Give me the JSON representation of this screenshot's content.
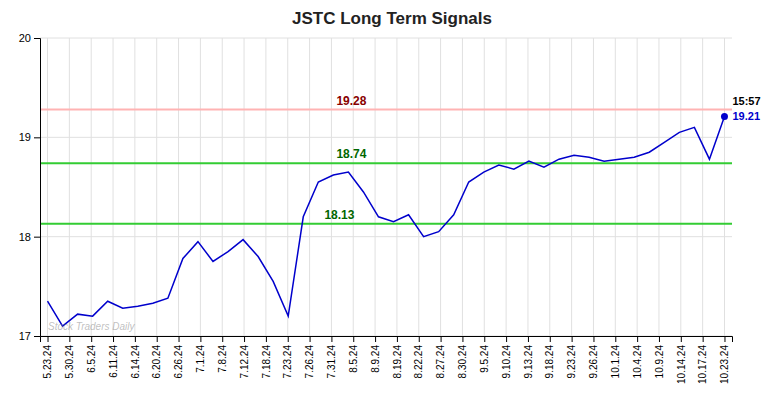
{
  "chart_data": {
    "type": "line",
    "title": "JSTC Long Term Signals",
    "watermark": "Stock Traders Daily",
    "x": [
      0,
      1,
      2,
      3,
      4,
      5,
      6,
      7,
      8,
      9,
      10,
      11,
      12,
      13,
      14,
      15,
      16,
      17,
      18,
      19,
      20,
      21,
      22,
      23,
      24,
      25,
      26,
      27,
      28,
      29,
      30,
      31,
      32,
      33,
      34,
      35,
      36,
      37,
      38,
      39,
      40,
      41,
      42,
      43,
      44,
      45
    ],
    "values": [
      17.35,
      17.1,
      17.22,
      17.2,
      17.35,
      17.28,
      17.3,
      17.33,
      17.38,
      17.78,
      17.95,
      17.75,
      17.85,
      17.97,
      17.8,
      17.55,
      17.2,
      18.2,
      18.55,
      18.62,
      18.65,
      18.45,
      18.2,
      18.15,
      18.22,
      18.0,
      18.05,
      18.22,
      18.55,
      18.65,
      18.72,
      18.68,
      18.76,
      18.7,
      18.78,
      18.82,
      18.8,
      18.76,
      18.78,
      18.8,
      18.85,
      18.95,
      19.05,
      19.1,
      18.78,
      19.21
    ],
    "color": "#0000cc",
    "xlim": [
      -0.5,
      45.5
    ],
    "xticks": [
      {
        "value": 0,
        "label": "5.23.24"
      },
      {
        "value": 1.4516,
        "label": "5.30.24"
      },
      {
        "value": 2.9032,
        "label": "6.5.24"
      },
      {
        "value": 4.3548,
        "label": "6.11.24"
      },
      {
        "value": 5.8065,
        "label": "6.14.24"
      },
      {
        "value": 7.2581,
        "label": "6.20.24"
      },
      {
        "value": 8.7097,
        "label": "6.26.24"
      },
      {
        "value": 10.1613,
        "label": "7.1.24"
      },
      {
        "value": 11.6129,
        "label": "7.8.24"
      },
      {
        "value": 13.0645,
        "label": "7.12.24"
      },
      {
        "value": 14.5161,
        "label": "7.18.24"
      },
      {
        "value": 15.9677,
        "label": "7.23.24"
      },
      {
        "value": 17.4194,
        "label": "7.26.24"
      },
      {
        "value": 18.871,
        "label": "7.31.24"
      },
      {
        "value": 20.3226,
        "label": "8.5.24"
      },
      {
        "value": 21.7742,
        "label": "8.9.24"
      },
      {
        "value": 23.2258,
        "label": "8.19.24"
      },
      {
        "value": 24.6774,
        "label": "8.22.24"
      },
      {
        "value": 26.129,
        "label": "8.27.24"
      },
      {
        "value": 27.5806,
        "label": "8.30.24"
      },
      {
        "value": 29.0323,
        "label": "9.5.24"
      },
      {
        "value": 30.4839,
        "label": "9.10.24"
      },
      {
        "value": 31.9355,
        "label": "9.13.24"
      },
      {
        "value": 33.3871,
        "label": "9.18.24"
      },
      {
        "value": 34.8387,
        "label": "9.23.24"
      },
      {
        "value": 36.2903,
        "label": "9.26.24"
      },
      {
        "value": 37.7419,
        "label": "10.1.24"
      },
      {
        "value": 39.1935,
        "label": "10.4.24"
      },
      {
        "value": 40.6452,
        "label": "10.9.24"
      },
      {
        "value": 42.0968,
        "label": "10.14.24"
      },
      {
        "value": 43.5484,
        "label": "10.17.24"
      },
      {
        "value": 45,
        "label": "10.23.24"
      }
    ],
    "ylim": [
      17,
      20
    ],
    "yticks": [
      17,
      18,
      19,
      20
    ],
    "grid": true,
    "reference_lines": [
      {
        "value": 19.28,
        "color": "#ffb3b3",
        "label": "19.28",
        "label_color": "#880000"
      },
      {
        "value": 18.74,
        "color": "#33cc33",
        "label": "18.74",
        "label_color": "#006600"
      },
      {
        "value": 18.13,
        "color": "#33cc33",
        "label": "18.13",
        "label_color": "#006600"
      }
    ],
    "annotations": [
      {
        "text": "15:57"
      },
      {
        "text": "19.21",
        "value": 19.21,
        "color": "#0000cc"
      }
    ]
  }
}
